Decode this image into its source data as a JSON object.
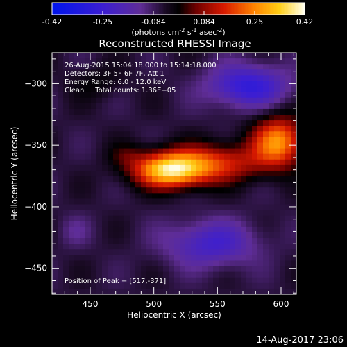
{
  "chart_data": {
    "type": "heatmap",
    "title": "Reconstructed RHESSI Image",
    "xlabel": "Heliocentric X (arcsec)",
    "ylabel": "Heliocentric Y (arcsec)",
    "xlim": [
      420,
      612
    ],
    "ylim": [
      -471,
      -275
    ],
    "xticks": [
      450,
      500,
      550,
      600
    ],
    "yticks": [
      -300,
      -350,
      -400,
      -450
    ],
    "colorbar": {
      "range": [
        -0.42,
        0.42
      ],
      "ticks": [
        "-0.42",
        "-0.25",
        "-0.084",
        "0.084",
        "0.25",
        "0.42"
      ],
      "label_parts": [
        "(photons cm",
        "-2",
        " s",
        "-1",
        " asec",
        "-2",
        ")"
      ]
    },
    "annotations": [
      "26-Aug-2015 15:04:18.000 to 15:14:18.000",
      "Detectors: 3F 5F 6F 7F, Att 1",
      "Energy Range: 6.0 - 12.0 keV",
      "Clean     Total counts: 1.36E+05"
    ],
    "peak_label": "Position of Peak = [517,-371]",
    "peak": [
      517,
      -371
    ],
    "sources": [
      {
        "x": 513,
        "y": -370,
        "sx": 20,
        "sy": 10,
        "amp": 0.42
      },
      {
        "x": 598,
        "y": -347,
        "sx": 14,
        "sy": 14,
        "amp": 0.32
      },
      {
        "x": 552,
        "y": -364,
        "sx": 26,
        "sy": 11,
        "amp": 0.2
      },
      {
        "x": 478,
        "y": -358,
        "sx": 10,
        "sy": 7,
        "amp": 0.06
      },
      {
        "x": 574,
        "y": -302,
        "sx": 22,
        "sy": 12,
        "amp": -0.22
      },
      {
        "x": 545,
        "y": -430,
        "sx": 25,
        "sy": 13,
        "amp": -0.17
      },
      {
        "x": 438,
        "y": -420,
        "sx": 9,
        "sy": 9,
        "amp": -0.05
      },
      {
        "x": 455,
        "y": -300,
        "sx": 15,
        "sy": 9,
        "amp": 0.05
      }
    ],
    "background": -0.06,
    "grid": false
  },
  "footer": {
    "date": "14-Aug-2017 23:06"
  }
}
